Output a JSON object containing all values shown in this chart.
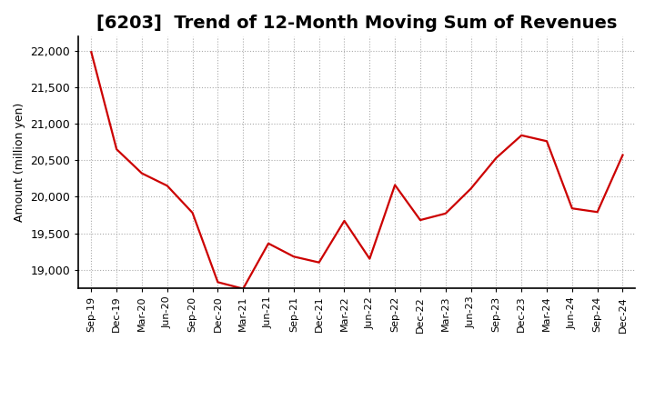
{
  "title": "[6203]  Trend of 12-Month Moving Sum of Revenues",
  "ylabel": "Amount (million yen)",
  "line_color": "#cc0000",
  "background_color": "#ffffff",
  "grid_color": "#aaaaaa",
  "ylim": [
    18750,
    22200
  ],
  "yticks": [
    19000,
    19500,
    20000,
    20500,
    21000,
    21500,
    22000
  ],
  "labels": [
    "Sep-19",
    "Dec-19",
    "Mar-20",
    "Jun-20",
    "Sep-20",
    "Dec-20",
    "Mar-21",
    "Jun-21",
    "Sep-21",
    "Dec-21",
    "Mar-22",
    "Jun-22",
    "Sep-22",
    "Dec-22",
    "Mar-23",
    "Jun-23",
    "Sep-23",
    "Dec-23",
    "Mar-24",
    "Jun-24",
    "Sep-24",
    "Dec-24"
  ],
  "values": [
    21980,
    20650,
    20320,
    20150,
    19780,
    18830,
    18740,
    19360,
    19180,
    19100,
    19670,
    19150,
    20160,
    19680,
    19770,
    20110,
    20530,
    20840,
    20760,
    19840,
    19790,
    20570
  ],
  "title_fontsize": 14,
  "ylabel_fontsize": 9,
  "tick_fontsize": 9,
  "xtick_fontsize": 8
}
